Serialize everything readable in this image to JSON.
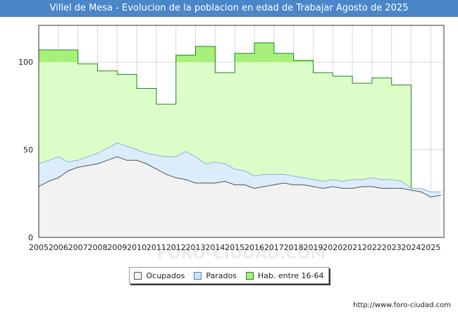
{
  "title": "Villel de Mesa - Evolucion de la poblacion en edad de Trabajar Agosto de 2025",
  "source": "http://www.foro-ciudad.com",
  "watermark": "FORO-CIUDAD.COM",
  "colors": {
    "title_bg": "#4a86c8",
    "hab_fill": "#ddfdc8",
    "hab_line": "#1a8a1a",
    "hab_top_fill": "#a8ef7c",
    "parados_fill": "#dcecfb",
    "parados_line": "#8ab4df",
    "ocupados_fill": "#f2f2f2",
    "ocupados_line": "#555555",
    "grid": "#d8d8d8"
  },
  "legend": [
    {
      "label": "Ocupados",
      "color": "#f2f2f2",
      "border": "#555555"
    },
    {
      "label": "Parados",
      "color": "#cfe3f8",
      "border": "#4a7fc0"
    },
    {
      "label": "Hab. entre 16-64",
      "color": "#a8ef7c",
      "border": "#2a7a1a"
    }
  ],
  "chart_data": {
    "type": "area",
    "title": "Villel de Mesa - Evolucion de la poblacion en edad de Trabajar Agosto de 2025",
    "xlim": [
      2005,
      2025.67
    ],
    "ylim": [
      0,
      121
    ],
    "yticks": [
      0,
      50,
      100
    ],
    "xticks": [
      "2005",
      "2006",
      "2007",
      "2008",
      "2009",
      "2010",
      "2011",
      "2012",
      "2013",
      "2014",
      "2015",
      "2016",
      "2017",
      "2018",
      "2019",
      "2020",
      "2021",
      "2022",
      "2023",
      "2024",
      "2025"
    ],
    "grid": true,
    "legend_position": "bottom-center",
    "series": [
      {
        "name": "Hab. entre 16-64",
        "x": [
          2005,
          2006,
          2007,
          2008,
          2009,
          2010,
          2011,
          2012,
          2013,
          2014,
          2015,
          2016,
          2017,
          2018,
          2019,
          2020,
          2021,
          2022,
          2023
        ],
        "values": [
          107,
          107,
          99,
          95,
          93,
          85,
          76,
          104,
          109,
          94,
          105,
          111,
          105,
          101,
          94,
          92,
          88,
          91,
          87
        ]
      },
      {
        "name": "Parados",
        "x": [
          2005.0,
          2005.5,
          2006.0,
          2006.5,
          2007.0,
          2007.5,
          2008.0,
          2008.5,
          2009.0,
          2009.5,
          2010.0,
          2010.5,
          2011.0,
          2011.5,
          2012.0,
          2012.5,
          2013.0,
          2013.5,
          2014.0,
          2014.5,
          2015.0,
          2015.5,
          2016.0,
          2016.5,
          2017.0,
          2017.5,
          2018.0,
          2018.5,
          2019.0,
          2019.5,
          2020.0,
          2020.5,
          2021.0,
          2021.5,
          2022.0,
          2022.5,
          2023.0,
          2023.5,
          2024.0,
          2024.5,
          2025.0,
          2025.5
        ],
        "values": [
          13,
          12,
          12,
          5,
          4,
          5,
          6,
          7,
          8,
          8,
          6,
          6,
          8,
          10,
          12,
          16,
          15,
          11,
          12,
          10,
          9,
          8,
          7,
          7,
          6,
          5,
          5,
          4,
          4,
          4,
          4,
          4,
          5,
          4,
          5,
          5,
          5,
          4,
          1,
          2,
          3,
          2
        ]
      },
      {
        "name": "Ocupados",
        "x": [
          2005.0,
          2005.5,
          2006.0,
          2006.5,
          2007.0,
          2007.5,
          2008.0,
          2008.5,
          2009.0,
          2009.5,
          2010.0,
          2010.5,
          2011.0,
          2011.5,
          2012.0,
          2012.5,
          2013.0,
          2013.5,
          2014.0,
          2014.5,
          2015.0,
          2015.5,
          2016.0,
          2016.5,
          2017.0,
          2017.5,
          2018.0,
          2018.5,
          2019.0,
          2019.5,
          2020.0,
          2020.5,
          2021.0,
          2021.5,
          2022.0,
          2022.5,
          2023.0,
          2023.5,
          2024.0,
          2024.5,
          2025.0,
          2025.5
        ],
        "values": [
          29,
          32,
          34,
          38,
          40,
          41,
          42,
          44,
          46,
          44,
          44,
          42,
          39,
          36,
          34,
          33,
          31,
          31,
          31,
          32,
          30,
          30,
          28,
          29,
          30,
          31,
          30,
          30,
          29,
          28,
          29,
          28,
          28,
          29,
          29,
          28,
          28,
          28,
          27,
          26,
          23,
          24
        ]
      }
    ]
  }
}
